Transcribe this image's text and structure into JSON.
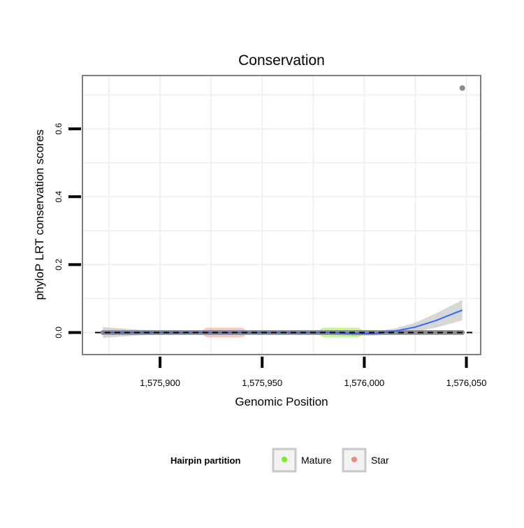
{
  "chart_data": {
    "type": "scatter",
    "title": "Conservation",
    "xlabel": "Genomic Position",
    "ylabel": "phyloP LRT conservation scores",
    "xlim": [
      1575862,
      1576057
    ],
    "ylim": [
      -0.065,
      0.757
    ],
    "x_ticks": [
      1575900,
      1575950,
      1576000,
      1576050
    ],
    "x_tick_labels": [
      "1,575,900",
      "1,575,950",
      "1,576,000",
      "1,576,050"
    ],
    "y_ticks": [
      0.0,
      0.2,
      0.4,
      0.6
    ],
    "y_tick_labels": [
      "0.0",
      "0.2",
      "0.4",
      "0.6"
    ],
    "grid": true,
    "reference_line": {
      "y": 0,
      "style": "dashed"
    },
    "legend": {
      "title": "Hairpin partition",
      "placement": "bottom",
      "entries": [
        {
          "name": "Mature",
          "color": "#7CEB23"
        },
        {
          "name": "Star",
          "color": "#F08A7C"
        }
      ]
    },
    "series": [
      {
        "name": "Mature",
        "color": "#7CEB23",
        "x_range": [
          1575978,
          1575999
        ],
        "values": [
          0.0
        ]
      },
      {
        "name": "Star",
        "color": "#F08A7C",
        "x_range": [
          1575921,
          1575942
        ],
        "values": [
          0.0
        ]
      },
      {
        "color": "#8C8C8C",
        "x_range": [
          1575872,
          1576048
        ],
        "values": [
          0.0
        ],
        "outlier": {
          "x": 1576048,
          "y": 0.72
        }
      }
    ],
    "smooth": {
      "color": "#3366FF",
      "x": [
        1575872,
        1575890,
        1575910,
        1575930,
        1575950,
        1575970,
        1575985,
        1575995,
        1576005,
        1576015,
        1576025,
        1576035,
        1576048
      ],
      "y": [
        0.0,
        0.0,
        0.0,
        0.0,
        0.0,
        0.0,
        0.0,
        -0.003,
        -0.003,
        0.004,
        0.016,
        0.035,
        0.066
      ],
      "band_half_width": [
        0.016,
        0.008,
        0.005,
        0.006,
        0.006,
        0.006,
        0.007,
        0.007,
        0.006,
        0.008,
        0.013,
        0.021,
        0.03
      ]
    }
  }
}
